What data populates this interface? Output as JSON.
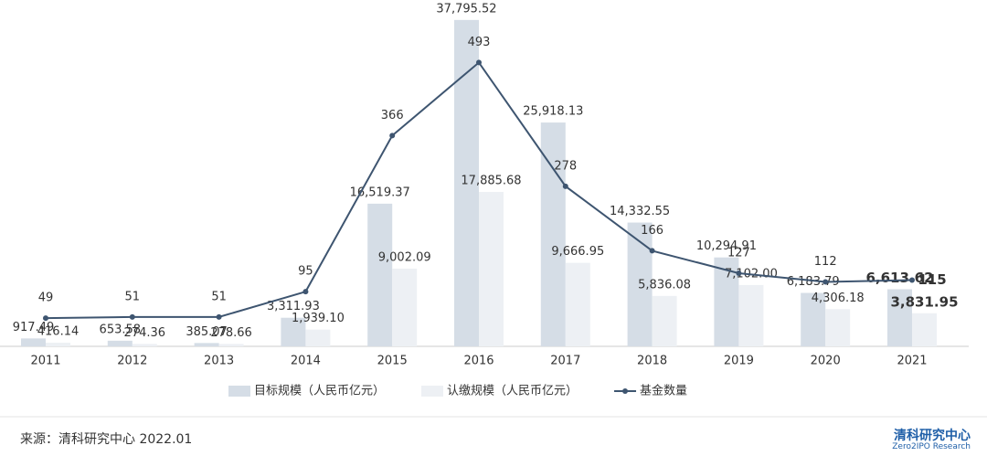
{
  "chart_data": {
    "type": "bar",
    "categories": [
      "2011",
      "2012",
      "2013",
      "2014",
      "2015",
      "2016",
      "2017",
      "2018",
      "2019",
      "2020",
      "2021"
    ],
    "series": [
      {
        "name": "目标规模（人民币亿元）",
        "color": "#d5dde6",
        "values": [
          917.49,
          653.58,
          385.07,
          3311.93,
          16519.37,
          37795.52,
          25918.13,
          14332.55,
          10294.91,
          6183.79,
          6613.62
        ],
        "value_labels": [
          "917.49",
          "653.58",
          "385.07",
          "3,311.93",
          "16,519.37",
          "37,795.52",
          "25,918.13",
          "14,332.55",
          "10,294.91",
          "6,183.79",
          "6,613.62"
        ]
      },
      {
        "name": "认缴规模（人民币亿元）",
        "color": "#edf0f4",
        "values": [
          416.14,
          274.36,
          278.66,
          1939.1,
          9002.09,
          17885.68,
          9666.95,
          5836.08,
          7102.0,
          4306.18,
          3831.95
        ],
        "value_labels": [
          "416.14",
          "274.36",
          "278.66",
          "1,939.10",
          "9,002.09",
          "17,885.68",
          "9,666.95",
          "5,836.08",
          "7,102.00",
          "4,306.18",
          "3,831.95"
        ]
      },
      {
        "name": "基金数量",
        "type": "line",
        "axis": "y2",
        "color": "#3e5570",
        "values": [
          49,
          51,
          51,
          95,
          366,
          493,
          278,
          166,
          127,
          112,
          115
        ]
      }
    ],
    "ylim": [
      0,
      40000
    ],
    "y2lim": [
      0,
      600
    ]
  },
  "footer": {
    "source": "来源：清科研究中心 2022.01",
    "logo": "清科研究中心",
    "logo_sub": "Zero2IPO Research"
  }
}
